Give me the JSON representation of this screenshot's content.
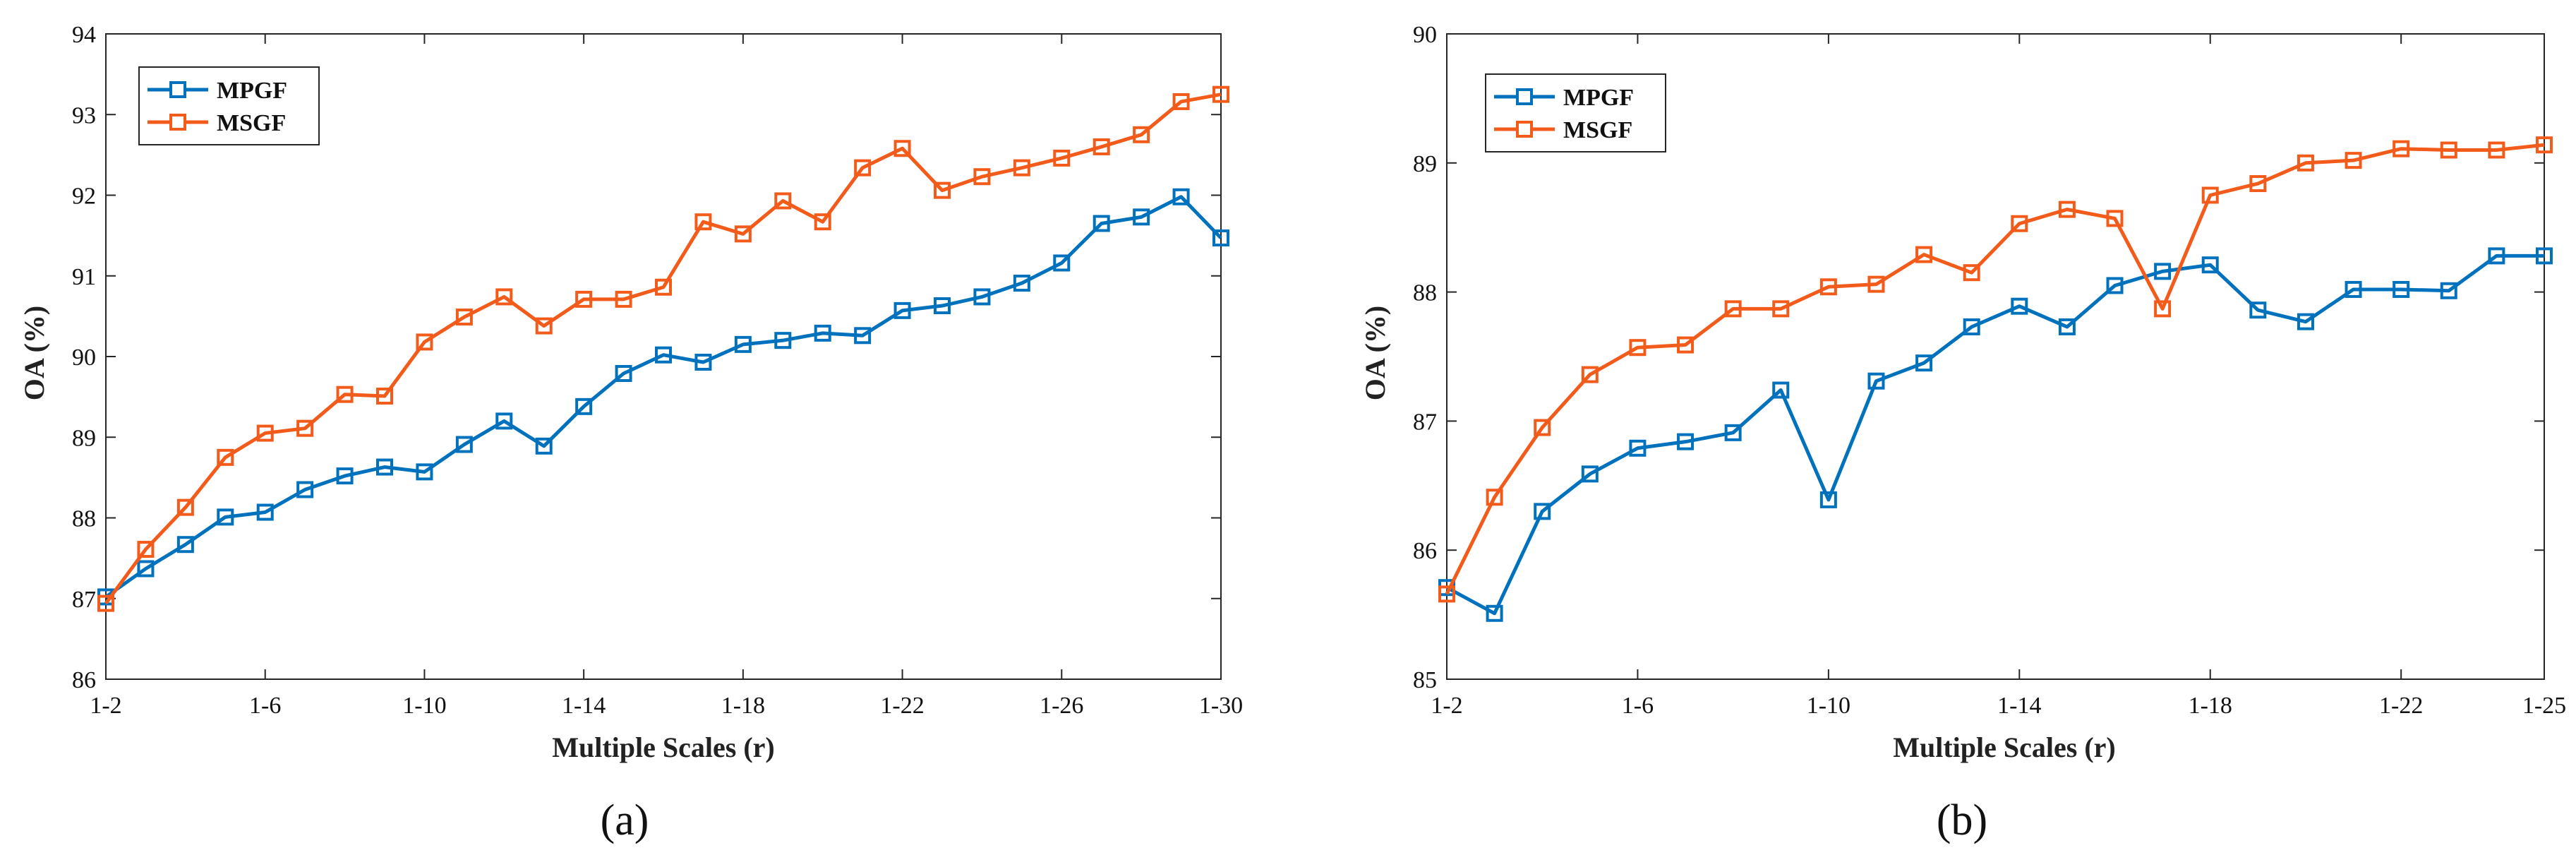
{
  "chart_data": [
    {
      "type": "line",
      "panel_label": "(a)",
      "xlabel": "Multiple Scales (r)",
      "ylabel": "OA (%)",
      "x": [
        2,
        3,
        4,
        5,
        6,
        7,
        8,
        9,
        10,
        11,
        12,
        13,
        14,
        15,
        16,
        17,
        18,
        19,
        20,
        21,
        22,
        23,
        24,
        25,
        26,
        27,
        28,
        29,
        30
      ],
      "xlim": [
        2,
        30
      ],
      "ylim": [
        86,
        94
      ],
      "xticks": [
        {
          "value": 2,
          "label": "1-2"
        },
        {
          "value": 6,
          "label": "1-6"
        },
        {
          "value": 10,
          "label": "1-10"
        },
        {
          "value": 14,
          "label": "1-14"
        },
        {
          "value": 18,
          "label": "1-18"
        },
        {
          "value": 22,
          "label": "1-22"
        },
        {
          "value": 26,
          "label": "1-26"
        },
        {
          "value": 30,
          "label": "1-30"
        }
      ],
      "yticks": [
        {
          "value": 86,
          "label": "86"
        },
        {
          "value": 87,
          "label": "87"
        },
        {
          "value": 88,
          "label": "88"
        },
        {
          "value": 89,
          "label": "89"
        },
        {
          "value": 90,
          "label": "90"
        },
        {
          "value": 91,
          "label": "91"
        },
        {
          "value": 92,
          "label": "92"
        },
        {
          "value": 93,
          "label": "93"
        },
        {
          "value": 94,
          "label": "94"
        }
      ],
      "legend_position": "top-left",
      "series": [
        {
          "name": "MPGF",
          "color": "#0072BD",
          "marker": "square",
          "values": [
            87.02,
            87.37,
            87.67,
            88.01,
            88.07,
            88.35,
            88.52,
            88.63,
            88.57,
            88.91,
            89.2,
            88.89,
            89.38,
            89.79,
            90.02,
            89.93,
            90.15,
            90.2,
            90.29,
            90.26,
            90.57,
            90.63,
            90.74,
            90.91,
            91.16,
            91.65,
            91.73,
            91.98,
            91.47
          ]
        },
        {
          "name": "MSGF",
          "color": "#F35B1A",
          "marker": "square",
          "values": [
            86.94,
            87.61,
            88.13,
            88.75,
            89.05,
            89.11,
            89.53,
            89.51,
            90.18,
            90.49,
            90.74,
            90.38,
            90.71,
            90.71,
            90.86,
            91.67,
            91.52,
            91.93,
            91.67,
            92.34,
            92.58,
            92.06,
            92.23,
            92.34,
            92.46,
            92.6,
            92.75,
            93.16,
            93.25
          ]
        }
      ]
    },
    {
      "type": "line",
      "panel_label": "(b)",
      "xlabel": "Multiple Scales (r)",
      "ylabel": "OA (%)",
      "x": [
        2,
        3,
        4,
        5,
        6,
        7,
        8,
        9,
        10,
        11,
        12,
        13,
        14,
        15,
        16,
        17,
        18,
        19,
        20,
        21,
        22,
        23,
        24,
        25
      ],
      "xlim": [
        2,
        25
      ],
      "ylim": [
        85,
        90
      ],
      "xticks": [
        {
          "value": 2,
          "label": "1-2"
        },
        {
          "value": 6,
          "label": "1-6"
        },
        {
          "value": 10,
          "label": "1-10"
        },
        {
          "value": 14,
          "label": "1-14"
        },
        {
          "value": 18,
          "label": "1-18"
        },
        {
          "value": 22,
          "label": "1-22"
        },
        {
          "value": 25,
          "label": "1-25"
        }
      ],
      "yticks": [
        {
          "value": 85,
          "label": "85"
        },
        {
          "value": 86,
          "label": "86"
        },
        {
          "value": 87,
          "label": "87"
        },
        {
          "value": 88,
          "label": "88"
        },
        {
          "value": 89,
          "label": "89"
        },
        {
          "value": 90,
          "label": "90"
        }
      ],
      "legend_position": "top-left",
      "series": [
        {
          "name": "MPGF",
          "color": "#0072BD",
          "marker": "square",
          "values": [
            85.71,
            85.51,
            86.3,
            86.59,
            86.79,
            86.84,
            86.91,
            87.24,
            86.39,
            87.31,
            87.45,
            87.73,
            87.89,
            87.73,
            88.05,
            88.16,
            88.21,
            87.86,
            87.77,
            88.02,
            88.02,
            88.01,
            88.28,
            88.28
          ]
        },
        {
          "name": "MSGF",
          "color": "#F35B1A",
          "marker": "square",
          "values": [
            85.66,
            86.41,
            86.95,
            87.36,
            87.57,
            87.59,
            87.87,
            87.87,
            88.04,
            88.06,
            88.29,
            88.15,
            88.53,
            88.64,
            88.57,
            87.87,
            88.75,
            88.84,
            89.0,
            89.02,
            89.11,
            89.1,
            89.1,
            89.14
          ]
        }
      ]
    }
  ]
}
